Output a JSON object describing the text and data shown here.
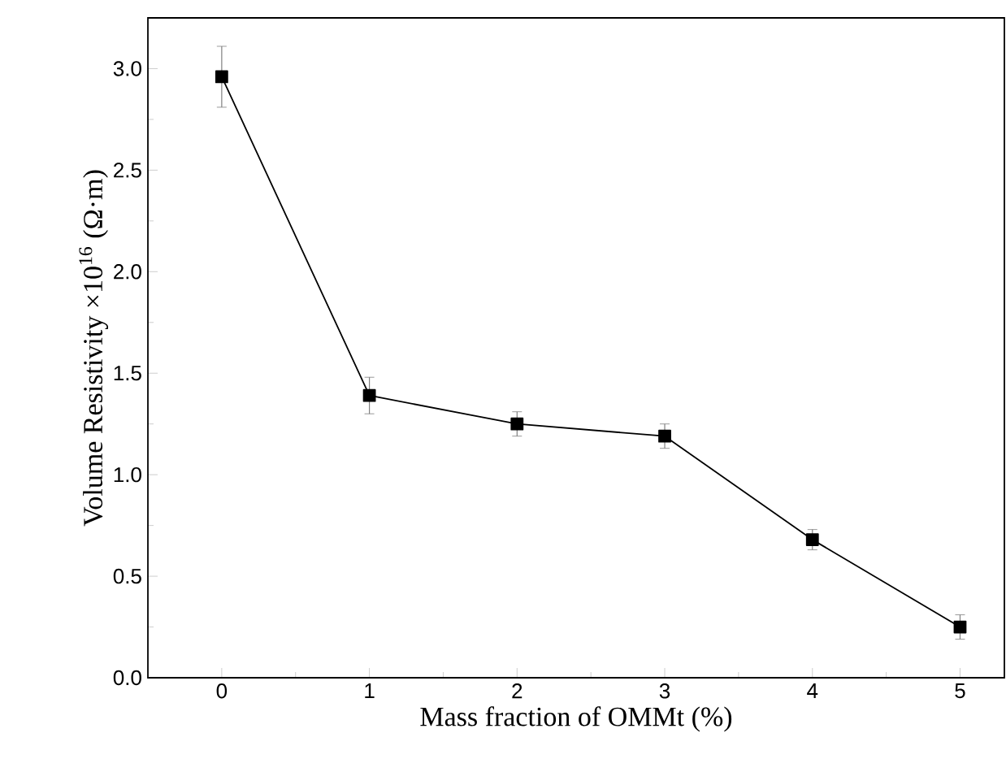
{
  "chart_data": {
    "type": "line",
    "xlabel": "Mass fraction of OMMt (%)",
    "ylabel": "Volume Resistivity ×10$^{16}$ (Ω·m)",
    "x": [
      0,
      1,
      2,
      3,
      4,
      5
    ],
    "series": [
      {
        "color": "#000000",
        "values": [
          2.96,
          1.39,
          1.25,
          1.19,
          0.68,
          0.25
        ],
        "errors": [
          0.15,
          0.09,
          0.06,
          0.06,
          0.05,
          0.06
        ]
      }
    ],
    "xlim": [
      -0.5,
      5.3
    ],
    "ylim": [
      0,
      3.25
    ],
    "xticks": [
      0,
      1,
      2,
      3,
      4,
      5
    ],
    "yticks": [
      {
        "value": 0,
        "label": "0.0"
      },
      0.5,
      {
        "value": 1,
        "label": "1.0"
      },
      1.5,
      {
        "value": 2,
        "label": "2.0"
      },
      2.5,
      {
        "value": 3,
        "label": "3.0"
      }
    ],
    "marker": "square",
    "line_style": "solid",
    "grid": false
  }
}
